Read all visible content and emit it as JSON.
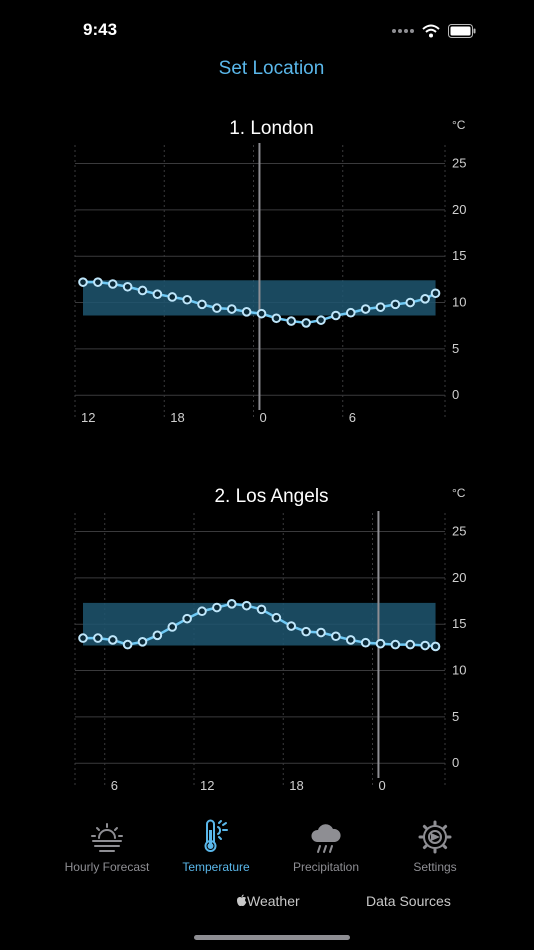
{
  "status": {
    "time": "9:43"
  },
  "header": {
    "set_location_label": "Set Location"
  },
  "chart_data": [
    {
      "type": "line",
      "title": "1. London",
      "ylabel": "°C",
      "ylim": [
        -3,
        27
      ],
      "yticks": [
        0,
        5,
        10,
        15,
        20,
        25
      ],
      "x_tick_labels": [
        "12",
        "18",
        "0",
        "6"
      ],
      "x_tick_hours": [
        0,
        6,
        12,
        18
      ],
      "now_hour": 12.4,
      "band": [
        8.6,
        12.4
      ],
      "x_hours": [
        0,
        1,
        2,
        3,
        4,
        5,
        6,
        7,
        8,
        9,
        10,
        11,
        12,
        13,
        14,
        15,
        16,
        17,
        18,
        19,
        20,
        21,
        22,
        23,
        23.7
      ],
      "values": [
        12.2,
        12.2,
        12.0,
        11.7,
        11.3,
        10.9,
        10.6,
        10.3,
        9.8,
        9.4,
        9.3,
        9.0,
        8.8,
        8.3,
        8.0,
        7.8,
        8.1,
        8.6,
        8.9,
        9.3,
        9.5,
        9.8,
        10.0,
        10.4,
        11.0
      ]
    },
    {
      "type": "line",
      "title": "2. Los Angels",
      "ylabel": "°C",
      "ylim": [
        -3,
        27
      ],
      "yticks": [
        0,
        5,
        10,
        15,
        20,
        25
      ],
      "x_tick_labels": [
        "6",
        "12",
        "18",
        "0"
      ],
      "x_tick_hours": [
        2,
        8,
        14,
        20
      ],
      "now_hour": 20.4,
      "band": [
        12.7,
        17.3
      ],
      "x_hours": [
        0,
        1,
        2,
        3,
        4,
        5,
        6,
        7,
        8,
        9,
        10,
        11,
        12,
        13,
        14,
        15,
        16,
        17,
        18,
        19,
        20,
        21,
        22,
        23,
        23.7
      ],
      "values": [
        13.5,
        13.5,
        13.3,
        12.8,
        13.1,
        13.8,
        14.7,
        15.6,
        16.4,
        16.8,
        17.2,
        17.0,
        16.6,
        15.7,
        14.8,
        14.2,
        14.1,
        13.7,
        13.3,
        13.0,
        12.9,
        12.8,
        12.8,
        12.7,
        12.6
      ]
    }
  ],
  "tabs": [
    {
      "label": "Hourly Forecast",
      "icon": "sun-haze-icon"
    },
    {
      "label": "Temperature",
      "icon": "thermometer-sun-icon",
      "active": true
    },
    {
      "label": "Precipitation",
      "icon": "cloud-rain-icon"
    },
    {
      "label": "Settings",
      "icon": "gear-icon"
    }
  ],
  "footer": {
    "weather_label": "Weather",
    "data_sources_label": "Data Sources"
  },
  "colors": {
    "accent": "#5ab7ea",
    "line": "#6ec8f3",
    "band": "#1f5670",
    "grid": "#3a3a3c"
  }
}
